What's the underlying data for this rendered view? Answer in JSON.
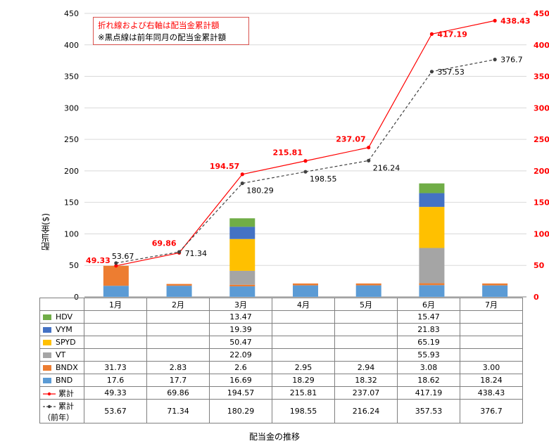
{
  "caption": "配当金の推移",
  "note": {
    "line1": "折れ線および右軸は配当金累計額",
    "line2": "※黒点線は前年同月の配当金累計額"
  },
  "chart_data": {
    "type": "bar",
    "stacked": true,
    "ylabel": "配当金($)",
    "ylim": [
      0,
      450
    ],
    "y2lim": [
      0,
      450
    ],
    "yticks": [
      0,
      50,
      100,
      150,
      200,
      250,
      300,
      350,
      400,
      450
    ],
    "categories": [
      "1月",
      "2月",
      "3月",
      "4月",
      "5月",
      "6月",
      "7月"
    ],
    "stack_series": [
      {
        "name": "BND",
        "color": "#5b9bd5",
        "values": [
          17.6,
          17.7,
          16.69,
          18.29,
          18.32,
          18.62,
          18.24
        ],
        "labels": [
          "17.6",
          "17.7",
          "16.69",
          "18.29",
          "18.32",
          "18.62",
          "18.24"
        ]
      },
      {
        "name": "BNDX",
        "color": "#ed7d31",
        "values": [
          31.73,
          2.83,
          2.6,
          2.95,
          2.94,
          3.08,
          3.0
        ],
        "labels": [
          "31.73",
          "2.83",
          "2.6",
          "2.95",
          "2.94",
          "3.08",
          "3.00"
        ]
      },
      {
        "name": "VT",
        "color": "#a5a5a5",
        "values": [
          null,
          null,
          22.09,
          null,
          null,
          55.93,
          null
        ],
        "labels": [
          "",
          "",
          "22.09",
          "",
          "",
          "55.93",
          ""
        ]
      },
      {
        "name": "SPYD",
        "color": "#ffc000",
        "values": [
          null,
          null,
          50.47,
          null,
          null,
          65.19,
          null
        ],
        "labels": [
          "",
          "",
          "50.47",
          "",
          "",
          "65.19",
          ""
        ]
      },
      {
        "name": "VYM",
        "color": "#4472c4",
        "values": [
          null,
          null,
          19.39,
          null,
          null,
          21.83,
          null
        ],
        "labels": [
          "",
          "",
          "19.39",
          "",
          "",
          "21.83",
          ""
        ]
      },
      {
        "name": "HDV",
        "color": "#70ad47",
        "values": [
          null,
          null,
          13.47,
          null,
          null,
          15.47,
          null
        ],
        "labels": [
          "",
          "",
          "13.47",
          "",
          "",
          "15.47",
          ""
        ]
      }
    ],
    "line_series": [
      {
        "name": "累計",
        "color": "#ff0000",
        "dashed": false,
        "values": [
          49.33,
          69.86,
          194.57,
          215.81,
          237.07,
          417.19,
          438.43
        ],
        "labels": [
          "49.33",
          "69.86",
          "194.57",
          "215.81",
          "237.07",
          "417.19",
          "438.43"
        ]
      },
      {
        "name": "累計（前年）",
        "color": "#404040",
        "dashed": true,
        "values": [
          53.67,
          71.34,
          180.29,
          198.55,
          216.24,
          357.53,
          376.7
        ],
        "labels": [
          "53.67",
          "71.34",
          "180.29",
          "198.55",
          "216.24",
          "357.53",
          "376.7"
        ]
      }
    ],
    "table_row_order": [
      "HDV",
      "VYM",
      "SPYD",
      "VT",
      "BNDX",
      "BND",
      "累計",
      "累計（前年）"
    ]
  }
}
